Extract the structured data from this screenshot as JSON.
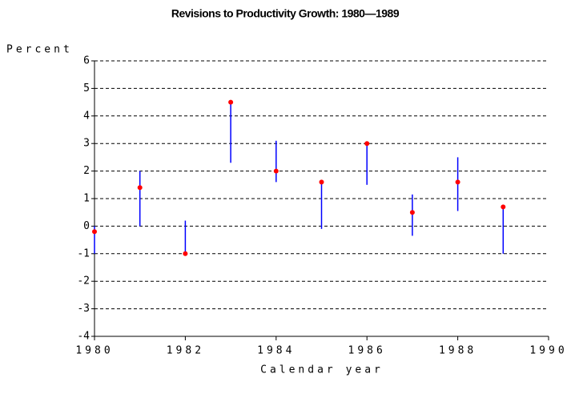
{
  "chart_data": {
    "type": "dot-range",
    "title": "Revisions to Productivity Growth: 1980—1989",
    "y_label": "Percent",
    "x_label": "Calendar year",
    "x": [
      1980,
      1981,
      1982,
      1983,
      1984,
      1985,
      1986,
      1987,
      1988,
      1989
    ],
    "values": [
      -0.2,
      1.4,
      -1.0,
      4.5,
      2.0,
      1.6,
      3.0,
      0.5,
      1.6,
      0.7
    ],
    "low": [
      -1.0,
      0.0,
      -1.0,
      2.3,
      1.6,
      -0.1,
      1.5,
      -0.35,
      0.55,
      -1.0
    ],
    "high": [
      0.0,
      2.0,
      0.2,
      4.5,
      3.1,
      1.6,
      3.0,
      1.15,
      2.5,
      0.7
    ],
    "dot_color": "#ff0000",
    "line_color": "#0000ff",
    "xlim": [
      1980,
      1990
    ],
    "xticks": [
      1980,
      1982,
      1984,
      1986,
      1988,
      1990
    ],
    "ylim": [
      -4,
      6
    ],
    "yticks": [
      -4,
      -3,
      -2,
      -1,
      0,
      1,
      2,
      3,
      4,
      5,
      6
    ],
    "grid": true
  }
}
